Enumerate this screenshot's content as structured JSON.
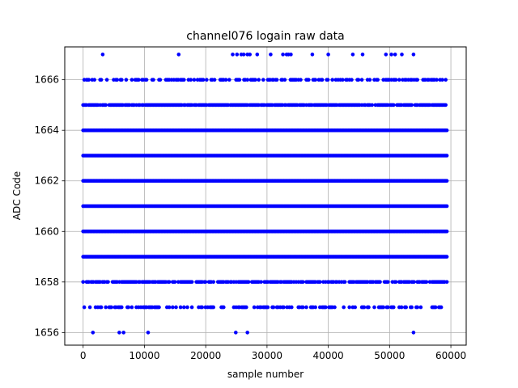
{
  "chart_data": {
    "type": "scatter",
    "title": "channel076 logain raw data",
    "xlabel": "sample number",
    "ylabel": "ADC Code",
    "xlim": [
      -3000,
      62500
    ],
    "ylim": [
      1655.5,
      1667.3
    ],
    "xticks": [
      0,
      10000,
      20000,
      30000,
      40000,
      50000,
      60000
    ],
    "yticks": [
      1656,
      1658,
      1660,
      1662,
      1664,
      1666
    ],
    "grid": true,
    "marker_color": "#0000ff",
    "x_range": [
      0,
      59500
    ],
    "dense_levels": [
      1657,
      1658,
      1659,
      1660,
      1661,
      1662,
      1663,
      1664,
      1665,
      1666
    ],
    "level_density": {
      "1657": 0.45,
      "1658": 0.75,
      "1659": 1.0,
      "1660": 1.0,
      "1661": 1.0,
      "1662": 1.0,
      "1663": 1.0,
      "1664": 1.0,
      "1665": 0.85,
      "1666": 0.45
    },
    "sparse_points": [
      {
        "x": 1600,
        "y": 1656
      },
      {
        "x": 5900,
        "y": 1656
      },
      {
        "x": 6600,
        "y": 1656
      },
      {
        "x": 10600,
        "y": 1656
      },
      {
        "x": 24900,
        "y": 1656
      },
      {
        "x": 26800,
        "y": 1656
      },
      {
        "x": 53900,
        "y": 1656
      },
      {
        "x": 3200,
        "y": 1667
      },
      {
        "x": 15600,
        "y": 1667
      },
      {
        "x": 24400,
        "y": 1667
      },
      {
        "x": 25100,
        "y": 1667
      },
      {
        "x": 25800,
        "y": 1667
      },
      {
        "x": 26200,
        "y": 1667
      },
      {
        "x": 26800,
        "y": 1667
      },
      {
        "x": 27200,
        "y": 1667
      },
      {
        "x": 28400,
        "y": 1667
      },
      {
        "x": 30600,
        "y": 1667
      },
      {
        "x": 32600,
        "y": 1667
      },
      {
        "x": 33200,
        "y": 1667
      },
      {
        "x": 33500,
        "y": 1667
      },
      {
        "x": 33900,
        "y": 1667
      },
      {
        "x": 37400,
        "y": 1667
      },
      {
        "x": 40000,
        "y": 1667
      },
      {
        "x": 44000,
        "y": 1667
      },
      {
        "x": 45600,
        "y": 1667
      },
      {
        "x": 49400,
        "y": 1667
      },
      {
        "x": 50300,
        "y": 1667
      },
      {
        "x": 50900,
        "y": 1667
      },
      {
        "x": 52000,
        "y": 1667
      },
      {
        "x": 53900,
        "y": 1667
      }
    ]
  }
}
